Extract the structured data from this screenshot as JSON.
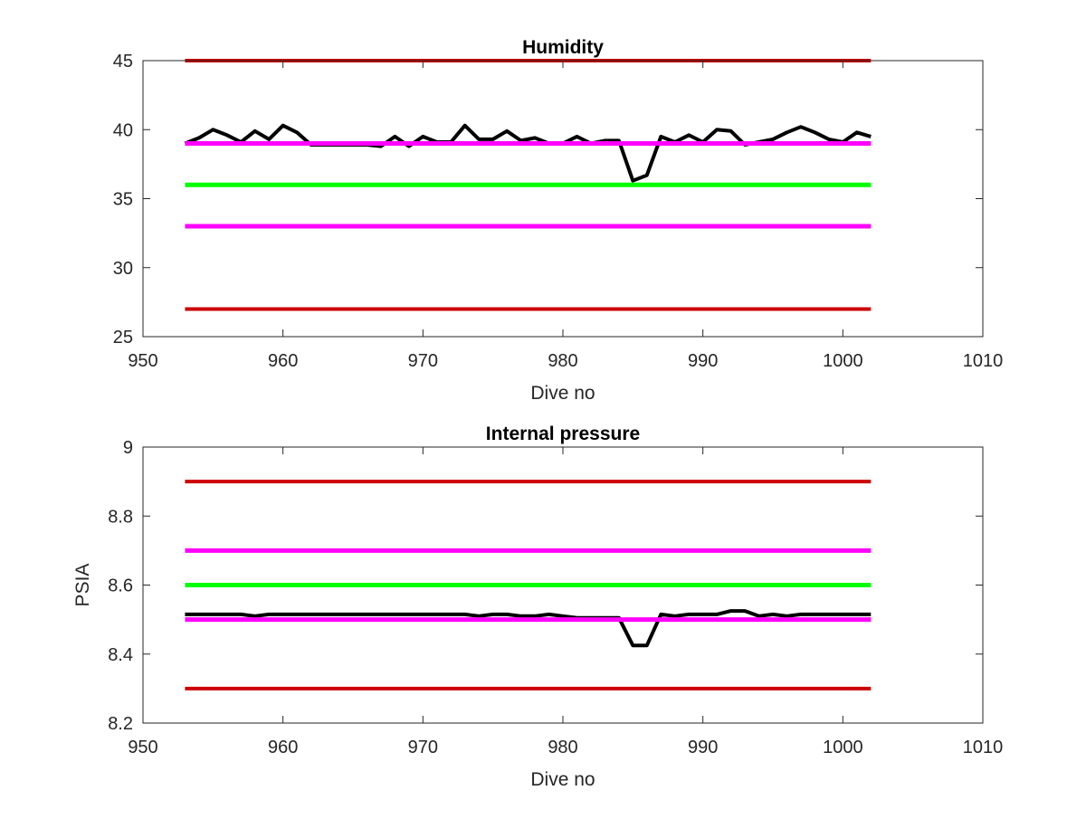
{
  "chart_data": [
    {
      "type": "line",
      "title": "Humidity",
      "xlabel": "Dive no",
      "ylabel": "",
      "xlim": [
        950,
        1010
      ],
      "ylim": [
        25,
        45
      ],
      "xticks": [
        950,
        960,
        970,
        980,
        990,
        1000,
        1010
      ],
      "xtick_labels": [
        "950",
        "960",
        "970",
        "980",
        "990",
        "1000",
        "1010"
      ],
      "yticks": [
        25,
        30,
        35,
        40,
        45
      ],
      "ytick_labels": [
        "25",
        "30",
        "35",
        "40",
        "45"
      ],
      "grid": false,
      "series": [
        {
          "color": "#000000",
          "width": 4,
          "x": [
            953,
            954,
            955,
            956,
            957,
            958,
            959,
            960,
            961,
            962,
            963,
            964,
            965,
            966,
            967,
            968,
            969,
            970,
            971,
            972,
            973,
            974,
            975,
            976,
            977,
            978,
            979,
            980,
            981,
            982,
            983,
            984,
            985,
            986,
            987,
            988,
            989,
            990,
            991,
            992,
            993,
            994,
            995,
            996,
            997,
            998,
            999,
            1000,
            1001,
            1002
          ],
          "y": [
            39.0,
            39.4,
            40.0,
            39.6,
            39.1,
            39.9,
            39.3,
            40.3,
            39.8,
            38.9,
            38.9,
            38.9,
            38.9,
            38.9,
            38.8,
            39.5,
            38.8,
            39.5,
            39.1,
            39.1,
            40.3,
            39.3,
            39.3,
            39.9,
            39.2,
            39.4,
            39.0,
            39.0,
            39.5,
            39.0,
            39.2,
            39.2,
            36.3,
            36.7,
            39.5,
            39.1,
            39.6,
            39.1,
            40.0,
            39.9,
            38.9,
            39.1,
            39.3,
            39.8,
            40.2,
            39.8,
            39.3,
            39.1,
            39.8,
            39.5
          ]
        },
        {
          "color": "#cc0000",
          "width": 4,
          "x": [
            953,
            1002
          ],
          "y": [
            45,
            45
          ]
        },
        {
          "color": "#ff00ff",
          "width": 5,
          "x": [
            953,
            1002
          ],
          "y": [
            39,
            39
          ]
        },
        {
          "color": "#00ff00",
          "width": 5,
          "x": [
            953,
            1002
          ],
          "y": [
            36,
            36
          ]
        },
        {
          "color": "#ff00ff",
          "width": 5,
          "x": [
            953,
            1002
          ],
          "y": [
            33,
            33
          ]
        },
        {
          "color": "#cc0000",
          "width": 4,
          "x": [
            953,
            1002
          ],
          "y": [
            27,
            27
          ]
        }
      ]
    },
    {
      "type": "line",
      "title": "Internal pressure",
      "xlabel": "Dive no",
      "ylabel": "PSIA",
      "xlim": [
        950,
        1010
      ],
      "ylim": [
        8.2,
        9
      ],
      "xticks": [
        950,
        960,
        970,
        980,
        990,
        1000,
        1010
      ],
      "xtick_labels": [
        "950",
        "960",
        "970",
        "980",
        "990",
        "1000",
        "1010"
      ],
      "yticks": [
        8.2,
        8.4,
        8.6,
        8.8,
        9
      ],
      "ytick_labels": [
        "8.2",
        "8.4",
        "8.6",
        "8.8",
        "9"
      ],
      "grid": false,
      "series": [
        {
          "color": "#000000",
          "width": 4,
          "x": [
            953,
            954,
            955,
            956,
            957,
            958,
            959,
            960,
            961,
            962,
            963,
            964,
            965,
            966,
            967,
            968,
            969,
            970,
            971,
            972,
            973,
            974,
            975,
            976,
            977,
            978,
            979,
            980,
            981,
            982,
            983,
            984,
            985,
            986,
            987,
            988,
            989,
            990,
            991,
            992,
            993,
            994,
            995,
            996,
            997,
            998,
            999,
            1000,
            1001,
            1002
          ],
          "y": [
            8.515,
            8.515,
            8.515,
            8.515,
            8.515,
            8.51,
            8.515,
            8.515,
            8.515,
            8.515,
            8.515,
            8.515,
            8.515,
            8.515,
            8.515,
            8.515,
            8.515,
            8.515,
            8.515,
            8.515,
            8.515,
            8.51,
            8.515,
            8.515,
            8.51,
            8.51,
            8.515,
            8.51,
            8.505,
            8.505,
            8.505,
            8.505,
            8.425,
            8.425,
            8.515,
            8.51,
            8.515,
            8.515,
            8.515,
            8.525,
            8.525,
            8.51,
            8.515,
            8.51,
            8.515,
            8.515,
            8.515,
            8.515,
            8.515,
            8.515
          ]
        },
        {
          "color": "#cc0000",
          "width": 4,
          "x": [
            953,
            1002
          ],
          "y": [
            8.9,
            8.9
          ]
        },
        {
          "color": "#ff00ff",
          "width": 5,
          "x": [
            953,
            1002
          ],
          "y": [
            8.7,
            8.7
          ]
        },
        {
          "color": "#00ff00",
          "width": 5,
          "x": [
            953,
            1002
          ],
          "y": [
            8.6,
            8.6
          ]
        },
        {
          "color": "#ff00ff",
          "width": 5,
          "x": [
            953,
            1002
          ],
          "y": [
            8.5,
            8.5
          ]
        },
        {
          "color": "#cc0000",
          "width": 4,
          "x": [
            953,
            1002
          ],
          "y": [
            8.3,
            8.3
          ]
        }
      ]
    }
  ]
}
